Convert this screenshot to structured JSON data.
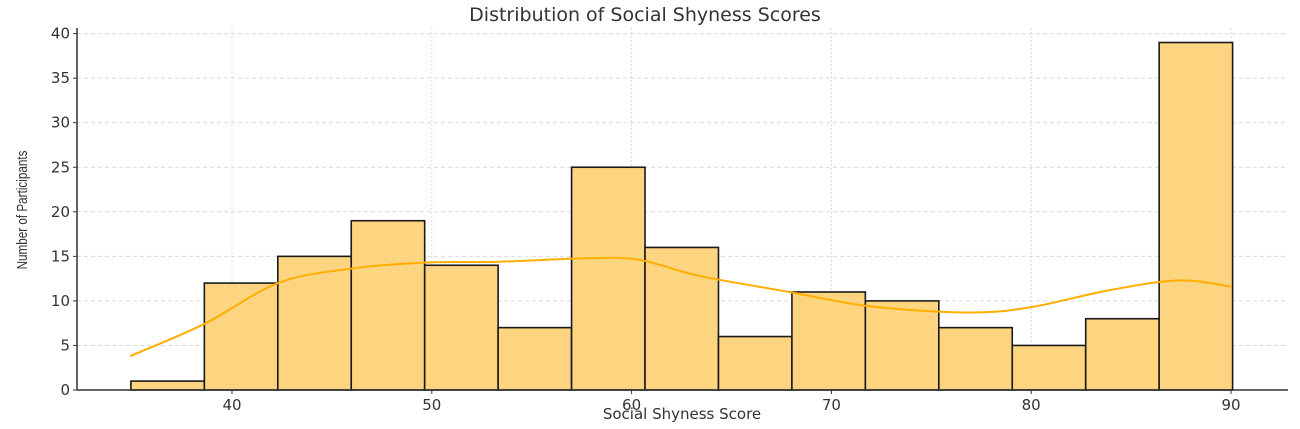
{
  "chart_data": {
    "type": "bar",
    "subtype": "histogram_with_kde",
    "title": "Distribution of Social Shyness Scores",
    "xlabel": "Social Shyness Score",
    "ylabel": "Number of Participants",
    "xlim": [
      32.4,
      92.8
    ],
    "ylim": [
      0,
      41
    ],
    "xticks": [
      40,
      50,
      60,
      70,
      80,
      90
    ],
    "yticks": [
      0,
      5,
      10,
      15,
      20,
      25,
      30,
      35,
      40
    ],
    "grid": true,
    "bin_start": 34.94,
    "bin_width": 3.676,
    "categories": [
      "34.9-38.6",
      "38.6-42.3",
      "42.3-45.9",
      "45.9-49.6",
      "49.6-53.3",
      "53.3-57.0",
      "57.0-60.7",
      "60.7-64.3",
      "64.3-68.0",
      "68.0-71.7",
      "71.7-75.4",
      "75.4-79.1",
      "79.1-82.7",
      "82.7-86.4",
      "86.4-90.1"
    ],
    "values": [
      1,
      12,
      15,
      19,
      14,
      7,
      25,
      16,
      6,
      11,
      10,
      7,
      5,
      8,
      39
    ],
    "series": [
      {
        "name": "Histogram",
        "values": [
          1,
          12,
          15,
          19,
          14,
          7,
          25,
          16,
          6,
          11,
          10,
          7,
          5,
          8,
          39
        ]
      },
      {
        "name": "KDE",
        "x": [
          34.9,
          38.6,
          42.3,
          45.9,
          49.6,
          53.4,
          57.9,
          60.4,
          63.4,
          67.9,
          71.9,
          76.9,
          80.0,
          83.9,
          87.4,
          90.0
        ],
        "values": [
          3.8,
          7.4,
          12.0,
          13.6,
          14.3,
          14.4,
          14.8,
          14.6,
          12.8,
          11.0,
          9.4,
          8.7,
          9.3,
          11.2,
          12.3,
          11.6
        ]
      }
    ],
    "colors": {
      "bar_fill": "#FDD480",
      "bar_edge": "#1a1a1a",
      "kde_line": "#FFAE00",
      "grid": "#d9d9d9",
      "axis": "#333333"
    }
  }
}
